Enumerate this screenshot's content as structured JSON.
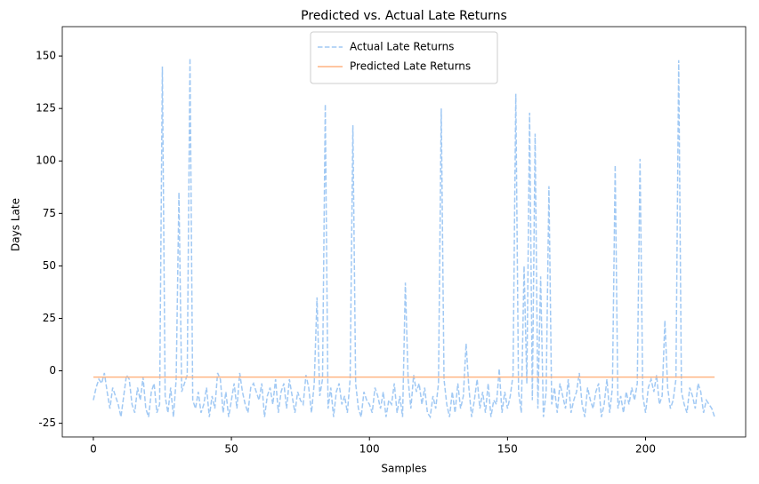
{
  "chart_data": {
    "type": "line",
    "title": "Predicted vs. Actual Late Returns",
    "x_label": "Samples",
    "y_label": "Days Late",
    "xlim": [
      -11.25,
      236.25
    ],
    "xticks": [
      0,
      50,
      100,
      150,
      200
    ],
    "ylim": [
      -31.5,
      164
    ],
    "yticks": [
      -25,
      0,
      25,
      50,
      75,
      100,
      125,
      150
    ],
    "legend": "upper center",
    "series": [
      {
        "name": "Actual Late Returns",
        "color": "#a1c9f4",
        "dash": "dashed",
        "values": [
          -14,
          -8,
          -4,
          -6,
          -1,
          -10,
          -18,
          -8,
          -12,
          -16,
          -22,
          -12,
          -2,
          -4,
          -16,
          -20,
          -8,
          -14,
          -3,
          -18,
          -22,
          -10,
          -6,
          -20,
          -16,
          145,
          -12,
          -20,
          -8,
          -22,
          -4,
          85,
          -10,
          -6,
          -2,
          149,
          -14,
          -18,
          -10,
          -20,
          -16,
          -8,
          -22,
          -12,
          -18,
          -1,
          -4,
          -20,
          -10,
          -22,
          -14,
          -6,
          -18,
          -1,
          -10,
          -16,
          -20,
          -8,
          -6,
          -10,
          -14,
          -6,
          -22,
          -12,
          -8,
          -16,
          -4,
          -20,
          -10,
          -6,
          -18,
          -4,
          -12,
          -20,
          -10,
          -14,
          -16,
          -2,
          -8,
          -20,
          -6,
          35,
          -12,
          -4,
          127,
          -18,
          -8,
          -22,
          -10,
          -6,
          -16,
          -12,
          -20,
          -4,
          117,
          -6,
          -18,
          -22,
          -10,
          -14,
          -16,
          -20,
          -8,
          -12,
          -18,
          -10,
          -22,
          -14,
          -16,
          -6,
          -20,
          -12,
          -22,
          42,
          -4,
          -18,
          -2,
          -10,
          -6,
          -16,
          -8,
          -20,
          -22,
          -12,
          -18,
          -6,
          125,
          -4,
          -16,
          -22,
          -10,
          -20,
          -6,
          -18,
          -12,
          13,
          -8,
          -22,
          -14,
          -4,
          -18,
          -10,
          -20,
          -6,
          -22,
          -14,
          -16,
          1,
          -20,
          -10,
          -18,
          -12,
          -2,
          132,
          -10,
          -20,
          50,
          -6,
          123,
          -14,
          113,
          -18,
          45,
          -22,
          -10,
          88,
          -16,
          -8,
          -20,
          -6,
          -12,
          -18,
          -4,
          -20,
          -14,
          -10,
          -1,
          -16,
          -22,
          -8,
          -14,
          -18,
          -10,
          -6,
          -22,
          -16,
          -4,
          -20,
          -8,
          98,
          -18,
          -12,
          -20,
          -10,
          -16,
          -8,
          -14,
          -6,
          101,
          -12,
          -20,
          -8,
          -4,
          -10,
          -2,
          -16,
          -12,
          24,
          -8,
          -18,
          -14,
          -4,
          148,
          -10,
          -16,
          -20,
          -8,
          -12,
          -18,
          -6,
          -10,
          -20,
          -14,
          -16,
          -18,
          -22
        ]
      },
      {
        "name": "Predicted Late Returns",
        "color": "#ffb482",
        "dash": "solid",
        "values": [
          -3,
          -3,
          -3,
          -3,
          -3,
          -3,
          -3,
          -3,
          -3,
          -3,
          -3,
          -3,
          -3,
          -3,
          -3,
          -3,
          -3,
          -3,
          -3,
          -3,
          -3,
          -3,
          -3,
          -3,
          -3,
          -3,
          -3,
          -3,
          -3,
          -3,
          -3,
          -3,
          -3,
          -3,
          -3,
          -3,
          -3,
          -3,
          -3,
          -3,
          -3,
          -3,
          -3,
          -3,
          -3,
          -3,
          -3,
          -3,
          -3,
          -3,
          -3,
          -3,
          -3,
          -3,
          -3,
          -3,
          -3,
          -3,
          -3,
          -3,
          -3,
          -3,
          -3,
          -3,
          -3,
          -3,
          -3,
          -3,
          -3,
          -3,
          -3,
          -3,
          -3,
          -3,
          -3,
          -3,
          -3,
          -3,
          -3,
          -3,
          -3,
          -3,
          -3,
          -3,
          -3,
          -3,
          -3,
          -3,
          -3,
          -3,
          -3,
          -3,
          -3,
          -3,
          -3,
          -3,
          -3,
          -3,
          -3,
          -3,
          -3,
          -3,
          -3,
          -3,
          -3,
          -3,
          -3,
          -3,
          -3,
          -3,
          -3,
          -3,
          -3,
          -3,
          -3,
          -3,
          -3,
          -3,
          -3,
          -3,
          -3,
          -3,
          -3,
          -3,
          -3,
          -3,
          -3,
          -3,
          -3,
          -3,
          -3,
          -3,
          -3,
          -3,
          -3,
          -3,
          -3,
          -3,
          -3,
          -3,
          -3,
          -3,
          -3,
          -3,
          -3,
          -3,
          -3,
          -3,
          -3,
          -3,
          -3,
          -3,
          -3,
          -3,
          -3,
          -3,
          -3,
          -3,
          -3,
          -3,
          -3,
          -3,
          -3,
          -3,
          -3,
          -3,
          -3,
          -3,
          -3,
          -3,
          -3,
          -3,
          -3,
          -3,
          -3,
          -3,
          -3,
          -3,
          -3,
          -3,
          -3,
          -3,
          -3,
          -3,
          -3,
          -3,
          -3,
          -3,
          -3,
          -3,
          -3,
          -3,
          -3,
          -3,
          -3,
          -3,
          -3,
          -3,
          -3,
          -3,
          -3,
          -3,
          -3,
          -3,
          -3,
          -3,
          -3,
          -3,
          -3,
          -3,
          -3,
          -3,
          -3,
          -3,
          -3,
          -3,
          -3,
          -3,
          -3,
          -3,
          -3,
          -3,
          -3,
          -3,
          -3,
          -3
        ]
      }
    ]
  }
}
